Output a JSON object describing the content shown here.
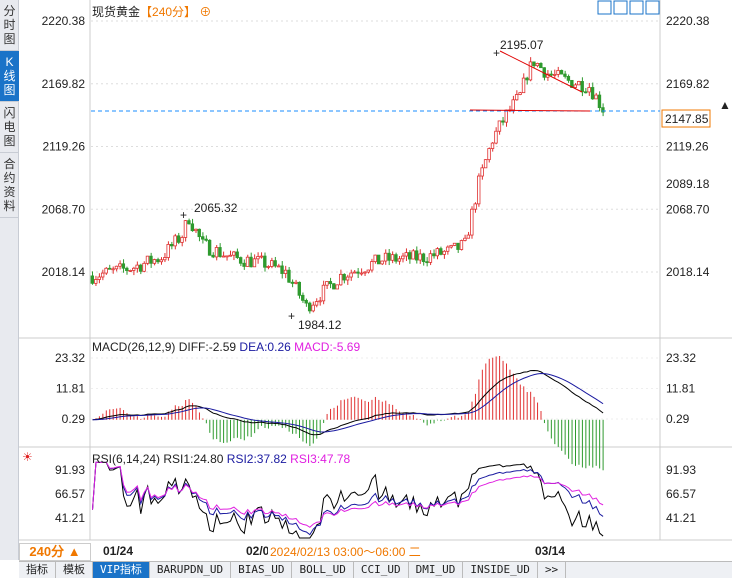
{
  "sidebar": {
    "items": [
      {
        "label": "分时图"
      },
      {
        "label": "K线图",
        "active": true
      },
      {
        "label": "闪电图"
      },
      {
        "label": "合约资料"
      }
    ]
  },
  "header": {
    "title": "现货黄金",
    "period": "【240分】",
    "icon": "crosshair-circle-icon"
  },
  "toolbar_icons": [
    "crosshair-icon",
    "zoom-range-icon",
    "play-icon",
    "move-right-icon"
  ],
  "chart_data": [
    {
      "type": "candlestick",
      "title": "现货黄金",
      "yticks": [
        "2220.38",
        "2169.82",
        "2119.26",
        "2068.70",
        "2018.14"
      ],
      "ylim": [
        1975,
        2225
      ],
      "annotations": {
        "high": "2195.07",
        "low": "1984.12",
        "local_high": "2065.32",
        "current": "2147.85",
        "marker": "2089.18"
      },
      "path": [
        [
          0,
          2015
        ],
        [
          12,
          2022
        ],
        [
          20,
          2030
        ],
        [
          26,
          2048
        ],
        [
          28,
          2062
        ],
        [
          32,
          2040
        ],
        [
          40,
          2030
        ],
        [
          50,
          2025
        ],
        [
          56,
          2018
        ],
        [
          60,
          2000
        ],
        [
          62,
          1990
        ],
        [
          66,
          2000
        ],
        [
          72,
          2015
        ],
        [
          84,
          2028
        ],
        [
          96,
          2030
        ],
        [
          104,
          2035
        ],
        [
          108,
          2040
        ],
        [
          112,
          2090
        ],
        [
          116,
          2125
        ],
        [
          120,
          2145
        ],
        [
          124,
          2160
        ],
        [
          126,
          2178
        ],
        [
          128,
          2188
        ],
        [
          132,
          2178
        ],
        [
          138,
          2172
        ],
        [
          144,
          2168
        ],
        [
          148,
          2150
        ]
      ],
      "colors": {
        "up": "#e03030",
        "down": "#2e9a2e"
      }
    },
    {
      "type": "macd",
      "label": "MACD(26,12,9)",
      "diff": "DIFF:-2.59",
      "dea": "DEA:0.26",
      "macd": "MACD:-5.69",
      "yticks": [
        "23.32",
        "11.81",
        "0.29"
      ]
    },
    {
      "type": "rsi",
      "label": "RSI(6,14,24)",
      "rsi1": "RSI1:24.80",
      "rsi2": "RSI2:37.82",
      "rsi3": "RSI3:47.78",
      "yticks": [
        "91.93",
        "66.57",
        "41.21"
      ]
    }
  ],
  "time_axis": {
    "labels": [
      "01/24",
      "02/0",
      "03/14"
    ],
    "cursor": "2024/02/13 03:00～06:00 二"
  },
  "period_button": "240分 ▲",
  "tabs": [
    "指标",
    "模板",
    "VIP指标",
    "BARUPDN_UD",
    "BIAS_UD",
    "BOLL_UD",
    "CCI_UD",
    "DMI_UD",
    "INSIDE_UD",
    ">>"
  ]
}
